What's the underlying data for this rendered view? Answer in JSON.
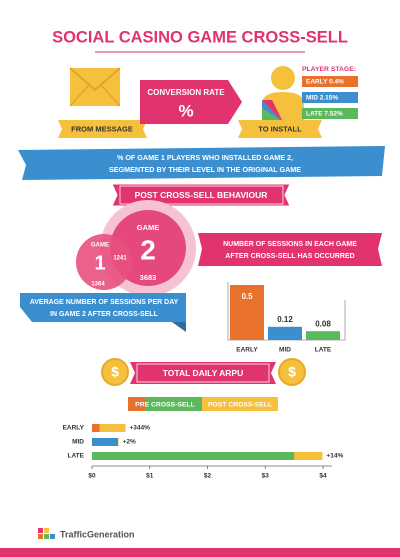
{
  "header": {
    "title": "SOCIAL CASINO GAME CROSS-SELL"
  },
  "conversion": {
    "from": "FROM MESSAGE",
    "label": "CONVERSION RATE",
    "symbol": "%",
    "to": "TO INSTALL",
    "legend_title": "PLAYER STAGE:",
    "stages": [
      {
        "label": "EARLY 0.4%",
        "color": "#e8712b"
      },
      {
        "label": "MID 2.15%",
        "color": "#3b8fcf"
      },
      {
        "label": "LATE 7.52%",
        "color": "#5cb85c"
      }
    ],
    "caption": [
      "% OF GAME 1 PLAYERS WHO INSTALLED GAME 2,",
      "SEGMENTED BY THEIR LEVEL IN THE ORIGINAL GAME"
    ]
  },
  "post": {
    "title": "POST CROSS-SELL BEHAVIOUR",
    "venn": {
      "game1_label": "GAME",
      "game1": "1",
      "game1_only": "1364",
      "overlap": "1241",
      "game2_label": "GAME",
      "game2": "2",
      "game2_only": "3683"
    },
    "venn_caption": [
      "NUMBER OF SESSIONS IN EACH GAME",
      "AFTER CROSS-SELL HAS OCCURRED"
    ]
  },
  "sessions_chart": {
    "type": "bar",
    "caption": [
      "AVERAGE NUMBER OF SESSIONS PER DAY",
      "IN GAME 2 AFTER CROSS-SELL"
    ],
    "categories": [
      "EARLY",
      "MID",
      "LATE"
    ],
    "values": [
      0.5,
      0.12,
      0.08
    ],
    "colors": [
      "#e8712b",
      "#3b8fcf",
      "#5cb85c"
    ]
  },
  "arpu_chart": {
    "type": "bar",
    "title": "TOTAL DAILY ARPU",
    "coin": "$",
    "categories": [
      "EARLY",
      "MID",
      "LATE"
    ],
    "series": [
      {
        "name": "PRE CROSS-SELL",
        "colors": [
          "#e8712b",
          "#3b8fcf",
          "#5cb85c"
        ],
        "values": [
          0.13,
          0.45,
          3.5
        ]
      },
      {
        "name": "POST CROSS-SELL",
        "color": "#f5c03b",
        "values": [
          0.58,
          0.46,
          3.99
        ]
      }
    ],
    "changes": [
      "+344%",
      "+2%",
      "+14%"
    ],
    "xlim": [
      0,
      4
    ],
    "xticks": [
      {
        "value": 0,
        "label": "$0"
      },
      {
        "value": 1,
        "label": "$1"
      },
      {
        "value": 2,
        "label": "$2"
      },
      {
        "value": 3,
        "label": "$3"
      },
      {
        "value": 4,
        "label": "$4"
      }
    ]
  },
  "footer": {
    "logo": "TrafficGeneration"
  }
}
